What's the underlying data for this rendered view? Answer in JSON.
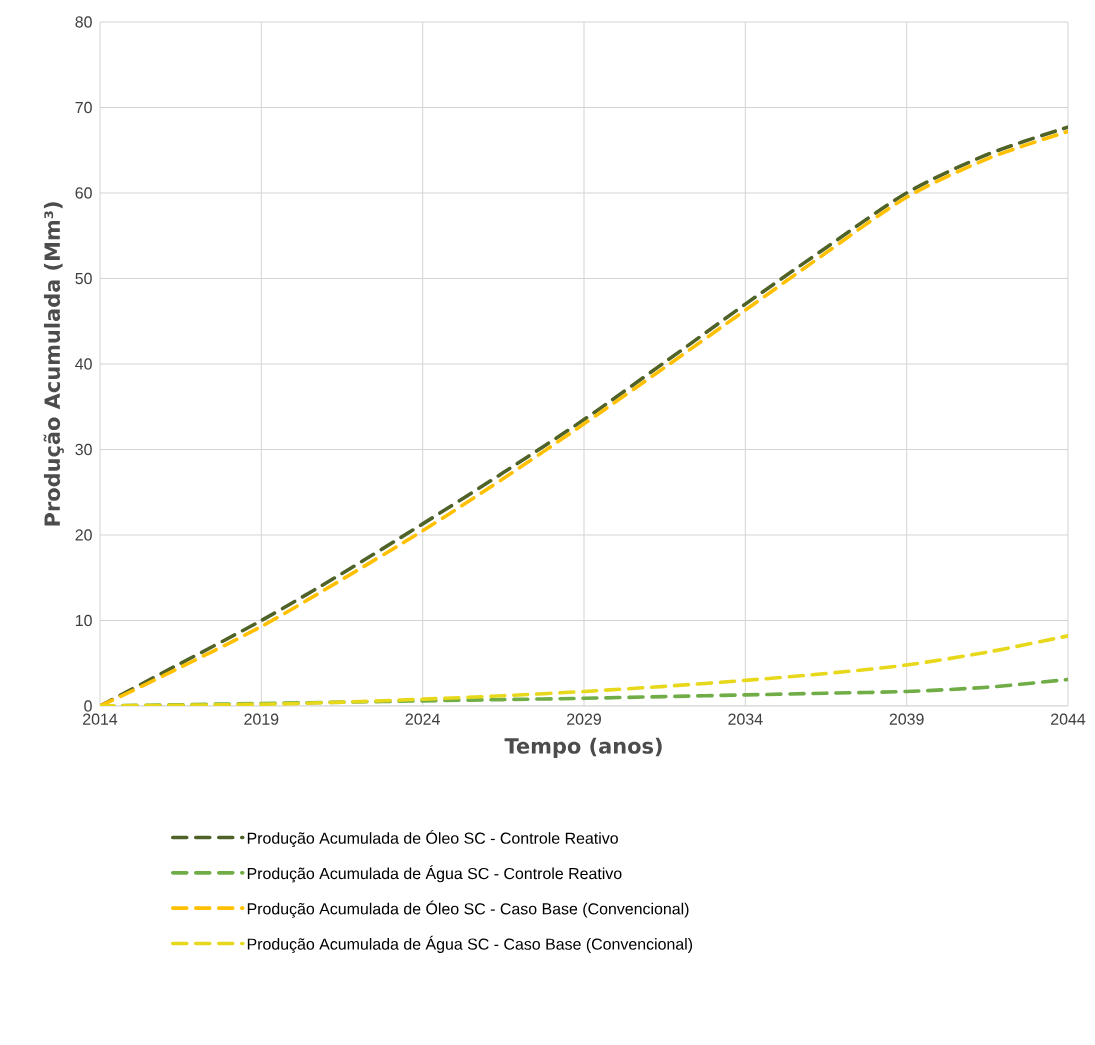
{
  "chart_data": {
    "type": "line",
    "xlabel": "Tempo (anos)",
    "ylabel": "Produção Acumulada (Mm³)",
    "x": [
      2014,
      2016,
      2019,
      2021.5,
      2024,
      2026.5,
      2029,
      2031.5,
      2034,
      2036.5,
      2039,
      2041.5,
      2044
    ],
    "series": [
      {
        "name": "Produção Acumulada de Óleo SC - Controle Reativo",
        "color": "#4f6228",
        "values": [
          0,
          4,
          10,
          15.5,
          21.3,
          27.3,
          33.5,
          40.2,
          47,
          53.6,
          60,
          64.5,
          67.7
        ]
      },
      {
        "name": "Produção Acumulada de Água SC - Controle Reativo",
        "color": "#70ad47",
        "x": [
          2014,
          2019,
          2021.5,
          2024,
          2026.5,
          2029,
          2031.5,
          2034,
          2036.5,
          2039,
          2041.5,
          2044
        ],
        "values": [
          0,
          0.3,
          0.45,
          0.6,
          0.75,
          0.9,
          1.1,
          1.3,
          1.5,
          1.7,
          2.2,
          3.1
        ]
      },
      {
        "name": "Produção Acumulada de Óleo SC - Caso Base (Convencional)",
        "color": "#ffc000",
        "values": [
          0,
          3.6,
          9.3,
          14.8,
          20.5,
          26.6,
          33,
          39.6,
          46.3,
          53,
          59.5,
          64,
          67.2
        ]
      },
      {
        "name": "Produção Acumulada de Água SC - Caso Base (Convencional)",
        "color": "#e8d81c",
        "x": [
          2014,
          2019,
          2021.5,
          2024,
          2026.5,
          2029,
          2031.5,
          2034,
          2036.5,
          2039,
          2041.5,
          2044
        ],
        "values": [
          0,
          0.2,
          0.45,
          0.8,
          1.2,
          1.7,
          2.3,
          3,
          3.8,
          4.8,
          6.3,
          8.2
        ]
      }
    ],
    "xlim": [
      2014,
      2044
    ],
    "xticks": [
      2014,
      2019,
      2024,
      2029,
      2034,
      2039,
      2044
    ],
    "ylim": [
      0,
      80
    ],
    "yticks": [
      0,
      10,
      20,
      30,
      40,
      50,
      60,
      70,
      80
    ],
    "grid": true,
    "legend": "bottom",
    "line_style": "dashed"
  }
}
